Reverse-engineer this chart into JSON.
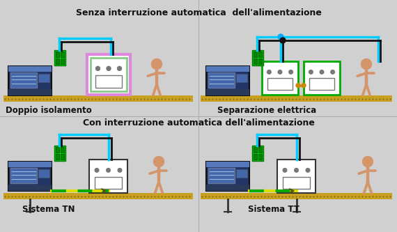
{
  "bg_color": "#d0d0d0",
  "title_top": "Senza interruzione automatica  dell'alimentazione",
  "title_bottom": "Con interruzione automatica dell'alimentazione",
  "label_tl": "Doppio isolamento",
  "label_tr": "Separazione elettrica",
  "label_bl": "Sistema TN",
  "label_br": "Sistema TT",
  "ground_color": "#c8a020",
  "ground_dark": "#7a5c10",
  "wire_black": "#111111",
  "wire_cyan": "#00ccff",
  "wire_yellow": "#dddd00",
  "wire_green": "#00aa00",
  "panel_blue_dark": "#223366",
  "panel_blue_mid": "#334488",
  "panel_blue_light": "#5577aa",
  "panel_screen": "#4466aa",
  "green_box": "#00cc00",
  "green_box_dark": "#007700",
  "person_color": "#d4956a",
  "outlet_border_pink": "#dd88dd",
  "outlet_border_green": "#88cc88",
  "dot_black": "#111111",
  "dot_blue": "#00aaff",
  "orange_wire": "#cc8800",
  "yellow_green_y": "#dddd00",
  "yellow_green_g": "#00aa00",
  "div_line": "#aaaaaa"
}
